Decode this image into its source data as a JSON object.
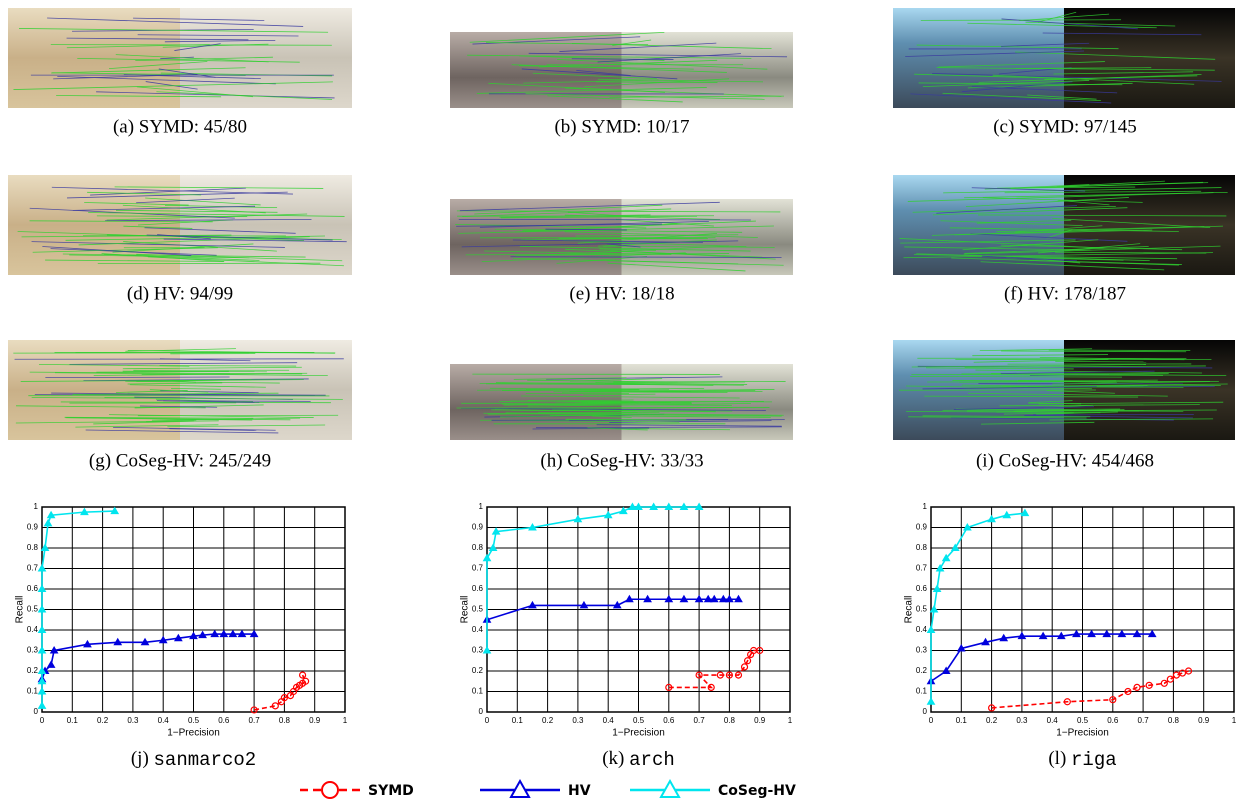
{
  "panels": [
    "(a) SYMD: 45/80",
    "(b) SYMD: 10/17",
    "(c) SYMD: 97/145",
    "(d) HV: 94/99",
    "(e) HV: 18/18",
    "(f) HV: 178/187",
    "(g) CoSeg-HV: 245/249",
    "(h) CoSeg-HV: 33/33",
    "(i) CoSeg-HV: 454/468"
  ],
  "chart_data": [
    {
      "type": "line",
      "caption_label": "(j)",
      "title": "sanmarco2",
      "xlabel": "1−Precision",
      "ylabel": "Recall",
      "xlim": [
        0,
        1
      ],
      "ylim": [
        0,
        1
      ],
      "xticks": [
        0,
        0.1,
        0.2,
        0.3,
        0.4,
        0.5,
        0.6,
        0.7,
        0.8,
        0.9,
        1
      ],
      "yticks": [
        0,
        0.1,
        0.2,
        0.3,
        0.4,
        0.5,
        0.6,
        0.7,
        0.8,
        0.9,
        1
      ],
      "grid": true,
      "series": [
        {
          "name": "SYMD",
          "color": "#ff0000",
          "marker": "circle",
          "dashed": true,
          "x": [
            0.7,
            0.77,
            0.79,
            0.8,
            0.82,
            0.83,
            0.84,
            0.85,
            0.86,
            0.87,
            0.86
          ],
          "values": [
            0.01,
            0.03,
            0.05,
            0.07,
            0.08,
            0.1,
            0.12,
            0.13,
            0.14,
            0.15,
            0.18
          ]
        },
        {
          "name": "HV",
          "color": "#0000dd",
          "marker": "triangle",
          "dashed": false,
          "x": [
            0,
            0.01,
            0.03,
            0.04,
            0.15,
            0.25,
            0.34,
            0.4,
            0.45,
            0.5,
            0.53,
            0.57,
            0.6,
            0.63,
            0.66,
            0.7
          ],
          "values": [
            0.16,
            0.2,
            0.23,
            0.3,
            0.33,
            0.34,
            0.34,
            0.35,
            0.36,
            0.37,
            0.375,
            0.38,
            0.38,
            0.38,
            0.38,
            0.38
          ]
        },
        {
          "name": "CoSeg-HV",
          "color": "#00e5ee",
          "marker": "triangle",
          "dashed": false,
          "x": [
            0,
            0,
            0,
            0,
            0,
            0,
            0,
            0,
            0,
            0.01,
            0.02,
            0.03,
            0.14,
            0.24
          ],
          "values": [
            0.03,
            0.1,
            0.15,
            0.2,
            0.3,
            0.4,
            0.5,
            0.6,
            0.7,
            0.8,
            0.92,
            0.96,
            0.975,
            0.98
          ]
        }
      ]
    },
    {
      "type": "line",
      "caption_label": "(k)",
      "title": "arch",
      "xlabel": "1−Precision",
      "ylabel": "Recall",
      "xlim": [
        0,
        1
      ],
      "ylim": [
        0,
        1
      ],
      "xticks": [
        0,
        0.1,
        0.2,
        0.3,
        0.4,
        0.5,
        0.6,
        0.7,
        0.8,
        0.9,
        1
      ],
      "yticks": [
        0,
        0.1,
        0.2,
        0.3,
        0.4,
        0.5,
        0.6,
        0.7,
        0.8,
        0.9,
        1
      ],
      "grid": true,
      "series": [
        {
          "name": "SYMD",
          "color": "#ff0000",
          "marker": "circle",
          "dashed": true,
          "x": [
            0.6,
            0.74,
            0.7,
            0.77,
            0.8,
            0.83,
            0.85,
            0.86,
            0.87,
            0.88,
            0.9
          ],
          "values": [
            0.12,
            0.12,
            0.18,
            0.18,
            0.18,
            0.18,
            0.22,
            0.25,
            0.28,
            0.3,
            0.3
          ]
        },
        {
          "name": "HV",
          "color": "#0000dd",
          "marker": "triangle",
          "dashed": false,
          "x": [
            0,
            0.15,
            0.32,
            0.43,
            0.47,
            0.53,
            0.6,
            0.65,
            0.7,
            0.73,
            0.75,
            0.78,
            0.8,
            0.83
          ],
          "values": [
            0.45,
            0.52,
            0.52,
            0.52,
            0.55,
            0.55,
            0.55,
            0.55,
            0.55,
            0.55,
            0.55,
            0.55,
            0.55,
            0.55
          ]
        },
        {
          "name": "CoSeg-HV",
          "color": "#00e5ee",
          "marker": "triangle",
          "dashed": false,
          "x": [
            0,
            0,
            0.02,
            0.03,
            0.15,
            0.3,
            0.4,
            0.45,
            0.48,
            0.5,
            0.55,
            0.6,
            0.65,
            0.7
          ],
          "values": [
            0.3,
            0.75,
            0.8,
            0.88,
            0.9,
            0.94,
            0.96,
            0.98,
            1,
            1,
            1,
            1,
            1,
            1
          ]
        }
      ]
    },
    {
      "type": "line",
      "caption_label": "(l)",
      "title": "riga",
      "xlabel": "1−Precision",
      "ylabel": "Recall",
      "xlim": [
        0,
        1
      ],
      "ylim": [
        0,
        1
      ],
      "xticks": [
        0,
        0.1,
        0.2,
        0.3,
        0.4,
        0.5,
        0.6,
        0.7,
        0.8,
        0.9,
        1
      ],
      "yticks": [
        0,
        0.1,
        0.2,
        0.3,
        0.4,
        0.5,
        0.6,
        0.7,
        0.8,
        0.9,
        1
      ],
      "grid": true,
      "series": [
        {
          "name": "SYMD",
          "color": "#ff0000",
          "marker": "circle",
          "dashed": true,
          "x": [
            0.2,
            0.45,
            0.6,
            0.65,
            0.68,
            0.72,
            0.77,
            0.79,
            0.81,
            0.83,
            0.85
          ],
          "values": [
            0.02,
            0.05,
            0.06,
            0.1,
            0.12,
            0.13,
            0.14,
            0.16,
            0.18,
            0.19,
            0.2
          ]
        },
        {
          "name": "HV",
          "color": "#0000dd",
          "marker": "triangle",
          "dashed": false,
          "x": [
            0,
            0.05,
            0.1,
            0.18,
            0.24,
            0.3,
            0.37,
            0.43,
            0.48,
            0.53,
            0.58,
            0.63,
            0.68,
            0.73
          ],
          "values": [
            0.15,
            0.2,
            0.31,
            0.34,
            0.36,
            0.37,
            0.37,
            0.37,
            0.38,
            0.38,
            0.38,
            0.38,
            0.38,
            0.38
          ]
        },
        {
          "name": "CoSeg-HV",
          "color": "#00e5ee",
          "marker": "triangle",
          "dashed": false,
          "x": [
            0,
            0,
            0.01,
            0.02,
            0.03,
            0.05,
            0.08,
            0.12,
            0.2,
            0.25,
            0.31
          ],
          "values": [
            0.05,
            0.4,
            0.5,
            0.6,
            0.7,
            0.75,
            0.8,
            0.9,
            0.94,
            0.96,
            0.97
          ]
        }
      ]
    }
  ]
}
